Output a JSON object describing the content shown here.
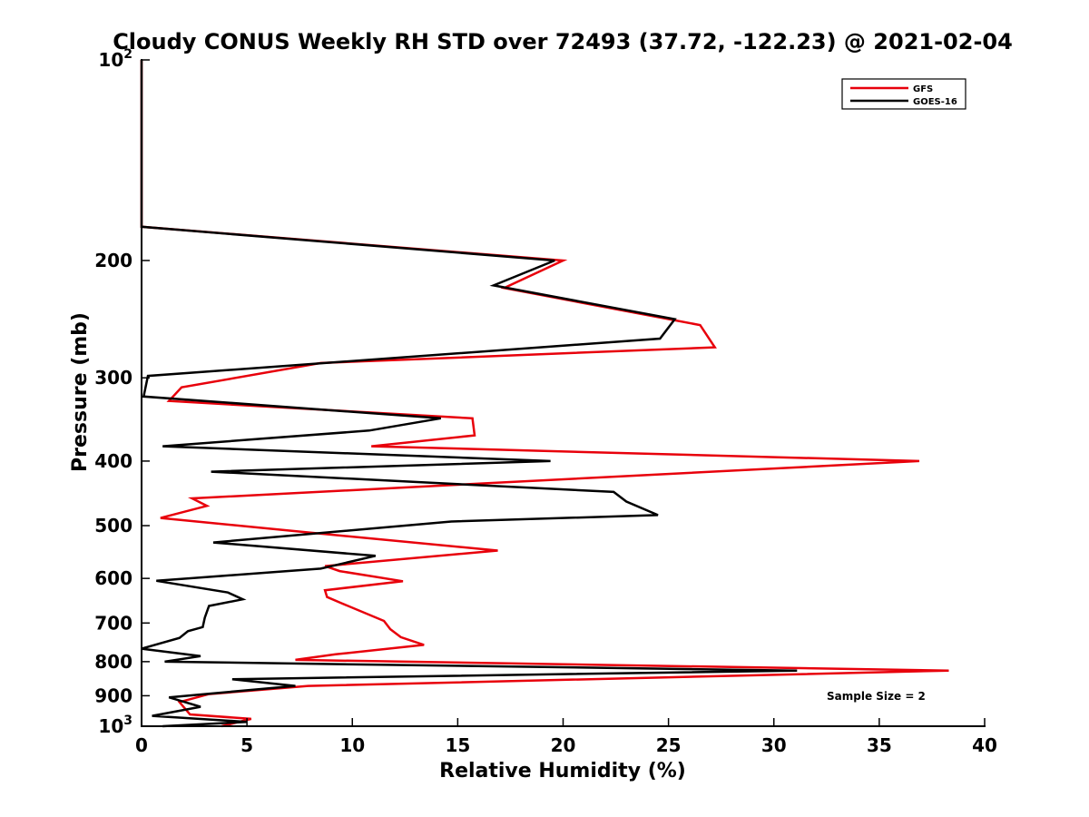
{
  "chart_data": {
    "type": "line",
    "title": "Cloudy CONUS Weekly RH STD over 72493 (37.72, -122.23) @ 2021-02-04",
    "xlabel": "Relative Humidity (%)",
    "ylabel": "Pressure (mb)",
    "xlim": [
      0,
      40
    ],
    "ylim": [
      100,
      1000
    ],
    "y_scale": "log",
    "y_reversed": true,
    "x_ticks": [
      "0",
      "5",
      "10",
      "15",
      "20",
      "25",
      "30",
      "35",
      "40"
    ],
    "y_ticks": [
      {
        "value": 100,
        "base": "10",
        "exp": "2"
      },
      {
        "value": 200,
        "label": "200"
      },
      {
        "value": 300,
        "label": "300"
      },
      {
        "value": 400,
        "label": "400"
      },
      {
        "value": 500,
        "label": "500"
      },
      {
        "value": 600,
        "label": "600"
      },
      {
        "value": 700,
        "label": "700"
      },
      {
        "value": 800,
        "label": "800"
      },
      {
        "value": 900,
        "label": "900"
      },
      {
        "value": 1000,
        "base": "10",
        "exp": "3"
      }
    ],
    "legend_position": "top-right",
    "annotation": "Sample Size = 2",
    "series": [
      {
        "name": "GFS",
        "color": "#e8000b",
        "points": [
          [
            0,
            100
          ],
          [
            0,
            178
          ],
          [
            20,
            200
          ],
          [
            17.2,
            220
          ],
          [
            26.5,
            250
          ],
          [
            27.2,
            270
          ],
          [
            8.5,
            285
          ],
          [
            1.9,
            310
          ],
          [
            1.3,
            325
          ],
          [
            15.7,
            345
          ],
          [
            15.8,
            366
          ],
          [
            10.9,
            380
          ],
          [
            36.9,
            400
          ],
          [
            2.4,
            455
          ],
          [
            3.1,
            467
          ],
          [
            0.9,
            487
          ],
          [
            7.4,
            510
          ],
          [
            16.9,
            545
          ],
          [
            8.7,
            575
          ],
          [
            9.4,
            585
          ],
          [
            12.4,
            606
          ],
          [
            8.7,
            625
          ],
          [
            8.8,
            640
          ],
          [
            9.5,
            654
          ],
          [
            11.5,
            695
          ],
          [
            11.8,
            715
          ],
          [
            12.3,
            735
          ],
          [
            13.4,
            755
          ],
          [
            9.2,
            780
          ],
          [
            7.3,
            795
          ],
          [
            38.3,
            825
          ],
          [
            28.2,
            840
          ],
          [
            7.9,
            870
          ],
          [
            3.2,
            895
          ],
          [
            1.8,
            920
          ],
          [
            2.3,
            960
          ],
          [
            5.2,
            975
          ],
          [
            3.8,
            1000
          ]
        ]
      },
      {
        "name": "GOES-16",
        "color": "#000000",
        "points": [
          [
            0,
            100
          ],
          [
            0,
            178
          ],
          [
            19.6,
            200
          ],
          [
            16.7,
            218
          ],
          [
            25.3,
            245
          ],
          [
            24.6,
            262
          ],
          [
            0.3,
            298
          ],
          [
            0.1,
            320
          ],
          [
            14.2,
            345
          ],
          [
            10.8,
            360
          ],
          [
            1,
            380
          ],
          [
            19.4,
            400
          ],
          [
            3.3,
            415
          ],
          [
            22.4,
            445
          ],
          [
            23,
            460
          ],
          [
            24.5,
            482
          ],
          [
            14.7,
            493
          ],
          [
            3.4,
            530
          ],
          [
            11.1,
            555
          ],
          [
            8.5,
            580
          ],
          [
            0.7,
            605
          ],
          [
            4.1,
            630
          ],
          [
            4.8,
            645
          ],
          [
            3.2,
            660
          ],
          [
            3,
            687
          ],
          [
            2.9,
            710
          ],
          [
            2.2,
            720
          ],
          [
            1.8,
            737
          ],
          [
            0,
            765
          ],
          [
            2.8,
            785
          ],
          [
            1.1,
            800
          ],
          [
            31.1,
            825
          ],
          [
            4.3,
            850
          ],
          [
            7.3,
            870
          ],
          [
            1.3,
            905
          ],
          [
            2.8,
            935
          ],
          [
            0.5,
            965
          ],
          [
            5,
            985
          ],
          [
            1,
            1000
          ]
        ]
      }
    ]
  }
}
